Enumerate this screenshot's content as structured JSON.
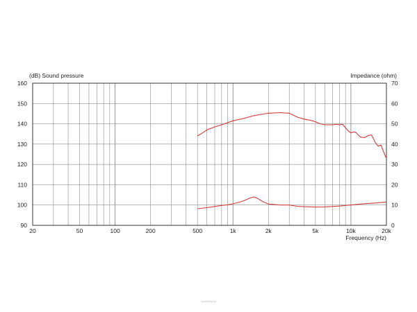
{
  "chart_data": {
    "type": "line",
    "xscale": "log",
    "xlim": [
      20,
      20000
    ],
    "y_left": {
      "label": "(dB)  Sound pressure",
      "lim": [
        90,
        160
      ],
      "ticks": [
        90,
        100,
        110,
        120,
        130,
        140,
        150,
        160
      ]
    },
    "y_right": {
      "label": "Impedance  (ohm)",
      "lim": [
        0,
        70
      ],
      "ticks": [
        0,
        10,
        20,
        30,
        40,
        50,
        60,
        70
      ]
    },
    "xlabel": "Frequency  (Hz)",
    "x_ticks": [
      {
        "value": 20,
        "label": "20"
      },
      {
        "value": 50,
        "label": "50"
      },
      {
        "value": 100,
        "label": "100"
      },
      {
        "value": 200,
        "label": "200"
      },
      {
        "value": 500,
        "label": "500"
      },
      {
        "value": 1000,
        "label": "1k"
      },
      {
        "value": 2000,
        "label": "2k"
      },
      {
        "value": 5000,
        "label": "5k"
      },
      {
        "value": 10000,
        "label": "10k"
      },
      {
        "value": 20000,
        "label": "20k"
      }
    ],
    "grid": true,
    "line_color": "#d23a3a",
    "series": [
      {
        "axis": "left",
        "x": [
          500,
          550,
          600,
          700,
          800,
          1000,
          1200,
          1500,
          1800,
          2000,
          2500,
          3000,
          3500,
          4000,
          4500,
          5000,
          5500,
          6000,
          6500,
          7000,
          7500,
          8000,
          8500,
          9000,
          9500,
          10000,
          10500,
          11000,
          12000,
          13000,
          14000,
          15000,
          16000,
          17000,
          18000,
          19000,
          20000
        ],
        "y": [
          134,
          135.5,
          137,
          138.5,
          139.5,
          141.5,
          142.5,
          144,
          144.8,
          145.2,
          145.5,
          145.2,
          143.3,
          142.3,
          141.8,
          141,
          140,
          139.5,
          139.5,
          139.5,
          139.8,
          139.5,
          139.8,
          138,
          136.5,
          135.5,
          136,
          135.8,
          133.5,
          133.2,
          134.2,
          134.5,
          131,
          129,
          129.5,
          126,
          123
        ]
      },
      {
        "axis": "right",
        "x": [
          500,
          600,
          700,
          800,
          900,
          1000,
          1200,
          1400,
          1500,
          1600,
          1800,
          2000,
          2500,
          3000,
          3500,
          4000,
          5000,
          6000,
          7000,
          8000,
          9000,
          10000,
          12000,
          14000,
          16000,
          18000,
          20000
        ],
        "y": [
          8.2,
          8.7,
          9.3,
          9.8,
          10.1,
          10.6,
          11.8,
          13.5,
          14,
          13.4,
          11.6,
          10.5,
          10,
          10,
          9.4,
          9.2,
          9,
          9.1,
          9.3,
          9.5,
          9.8,
          10,
          10.5,
          10.8,
          11,
          11.2,
          11.5
        ]
      }
    ]
  },
  "watermark": "www.leksi.pl"
}
